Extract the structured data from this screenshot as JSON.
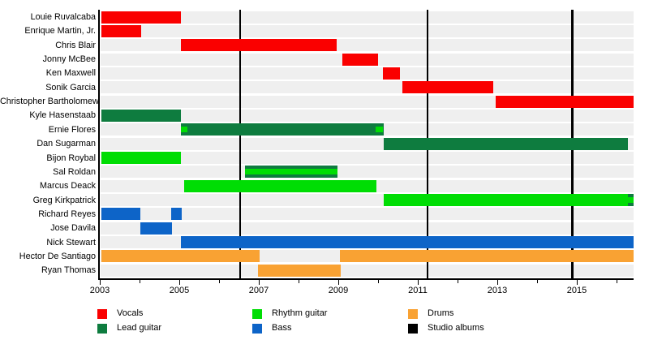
{
  "chart_data": {
    "type": "bar",
    "variant": "band-member-timeline-gantt",
    "title": "",
    "xlabel": "",
    "ylabel": "",
    "grid": false,
    "x_axis": {
      "min_year": 2003,
      "max_year": 2016.43,
      "tick_years": [
        2003,
        2004,
        2005,
        2006,
        2007,
        2008,
        2009,
        2010,
        2011,
        2012,
        2013,
        2014,
        2015,
        2016
      ],
      "label_years": [
        2003,
        2005,
        2007,
        2009,
        2011,
        2013,
        2015
      ]
    },
    "legend_position": "bottom",
    "legend": [
      {
        "label": "Vocals",
        "role": "vocals",
        "color": "#fa0000"
      },
      {
        "label": "Lead guitar",
        "role": "lead_guitar",
        "color": "#0e7c3f"
      },
      {
        "label": "Rhythm guitar",
        "role": "rhythm_guitar",
        "color": "#00dd04"
      },
      {
        "label": "Bass",
        "role": "bass",
        "color": "#0d64c8"
      },
      {
        "label": "Drums",
        "role": "drums",
        "color": "#f9a233"
      },
      {
        "label": "Studio albums",
        "role": "studio_albums",
        "color": "#000000"
      }
    ],
    "members": [
      {
        "name": "Louie Ruvalcaba",
        "segments": [
          {
            "role": "vocals",
            "start": 2003.05,
            "end": 2005.05
          }
        ]
      },
      {
        "name": "Enrique Martin, Jr.",
        "segments": [
          {
            "role": "vocals",
            "start": 2003.05,
            "end": 2004.05
          }
        ]
      },
      {
        "name": "Chris Blair",
        "segments": [
          {
            "role": "vocals",
            "start": 2005.05,
            "end": 2008.95
          }
        ]
      },
      {
        "name": "Jonny McBee",
        "segments": [
          {
            "role": "vocals",
            "start": 2009.1,
            "end": 2010.0
          }
        ]
      },
      {
        "name": "Ken Maxwell",
        "segments": [
          {
            "role": "vocals",
            "start": 2010.12,
            "end": 2010.56
          }
        ]
      },
      {
        "name": "Sonik Garcia",
        "segments": [
          {
            "role": "vocals",
            "start": 2010.62,
            "end": 2012.9
          }
        ]
      },
      {
        "name": "Christopher Bartholomew",
        "segments": [
          {
            "role": "vocals",
            "start": 2012.96,
            "end": 2016.43
          }
        ]
      },
      {
        "name": "Kyle Hasenstaab",
        "segments": [
          {
            "role": "lead_guitar",
            "start": 2003.05,
            "end": 2005.05
          }
        ]
      },
      {
        "name": "Ernie Flores",
        "segments": [
          {
            "role": "lead_guitar",
            "start": 2005.05,
            "end": 2010.15
          },
          {
            "role": "rhythm_guitar",
            "start": 2005.05,
            "end": 2005.2,
            "inset": true
          },
          {
            "role": "rhythm_guitar",
            "start": 2009.93,
            "end": 2010.13,
            "inset": true
          }
        ]
      },
      {
        "name": "Dan Sugarman",
        "segments": [
          {
            "role": "lead_guitar",
            "start": 2010.15,
            "end": 2016.28
          }
        ]
      },
      {
        "name": "Bijon Roybal",
        "segments": [
          {
            "role": "rhythm_guitar",
            "start": 2003.05,
            "end": 2005.05
          }
        ]
      },
      {
        "name": "Sal Roldan",
        "segments": [
          {
            "role": "lead_guitar",
            "start": 2006.65,
            "end": 2008.97
          },
          {
            "role": "rhythm_guitar",
            "start": 2006.65,
            "end": 2008.97,
            "inset": true
          }
        ]
      },
      {
        "name": "Marcus Deack",
        "segments": [
          {
            "role": "rhythm_guitar",
            "start": 2005.12,
            "end": 2009.95
          }
        ]
      },
      {
        "name": "Greg Kirkpatrick",
        "segments": [
          {
            "role": "rhythm_guitar",
            "start": 2010.15,
            "end": 2016.28
          },
          {
            "role": "lead_guitar",
            "start": 2016.28,
            "end": 2016.43
          },
          {
            "role": "rhythm_guitar",
            "start": 2016.28,
            "end": 2016.43,
            "inset": true
          }
        ]
      },
      {
        "name": "Richard Reyes",
        "segments": [
          {
            "role": "bass",
            "start": 2003.05,
            "end": 2004.02
          },
          {
            "role": "bass",
            "start": 2004.79,
            "end": 2005.06
          }
        ]
      },
      {
        "name": "Jose Davila",
        "segments": [
          {
            "role": "bass",
            "start": 2004.02,
            "end": 2004.81
          }
        ]
      },
      {
        "name": "Nick Stewart",
        "segments": [
          {
            "role": "bass",
            "start": 2005.05,
            "end": 2016.43
          }
        ]
      },
      {
        "name": "Hector De Santiago",
        "segments": [
          {
            "role": "drums",
            "start": 2003.05,
            "end": 2007.03
          },
          {
            "role": "drums",
            "start": 2009.05,
            "end": 2016.43
          }
        ]
      },
      {
        "name": "Ryan Thomas",
        "segments": [
          {
            "role": "drums",
            "start": 2006.98,
            "end": 2009.06
          }
        ]
      }
    ],
    "album_release_lines": {
      "legend_label": "Studio albums",
      "years": [
        2006.53,
        2011.24,
        2014.89
      ]
    }
  },
  "layout_colors": {
    "background": "#ffffff",
    "row_stripe": "#efefef",
    "axis": "#000000"
  }
}
